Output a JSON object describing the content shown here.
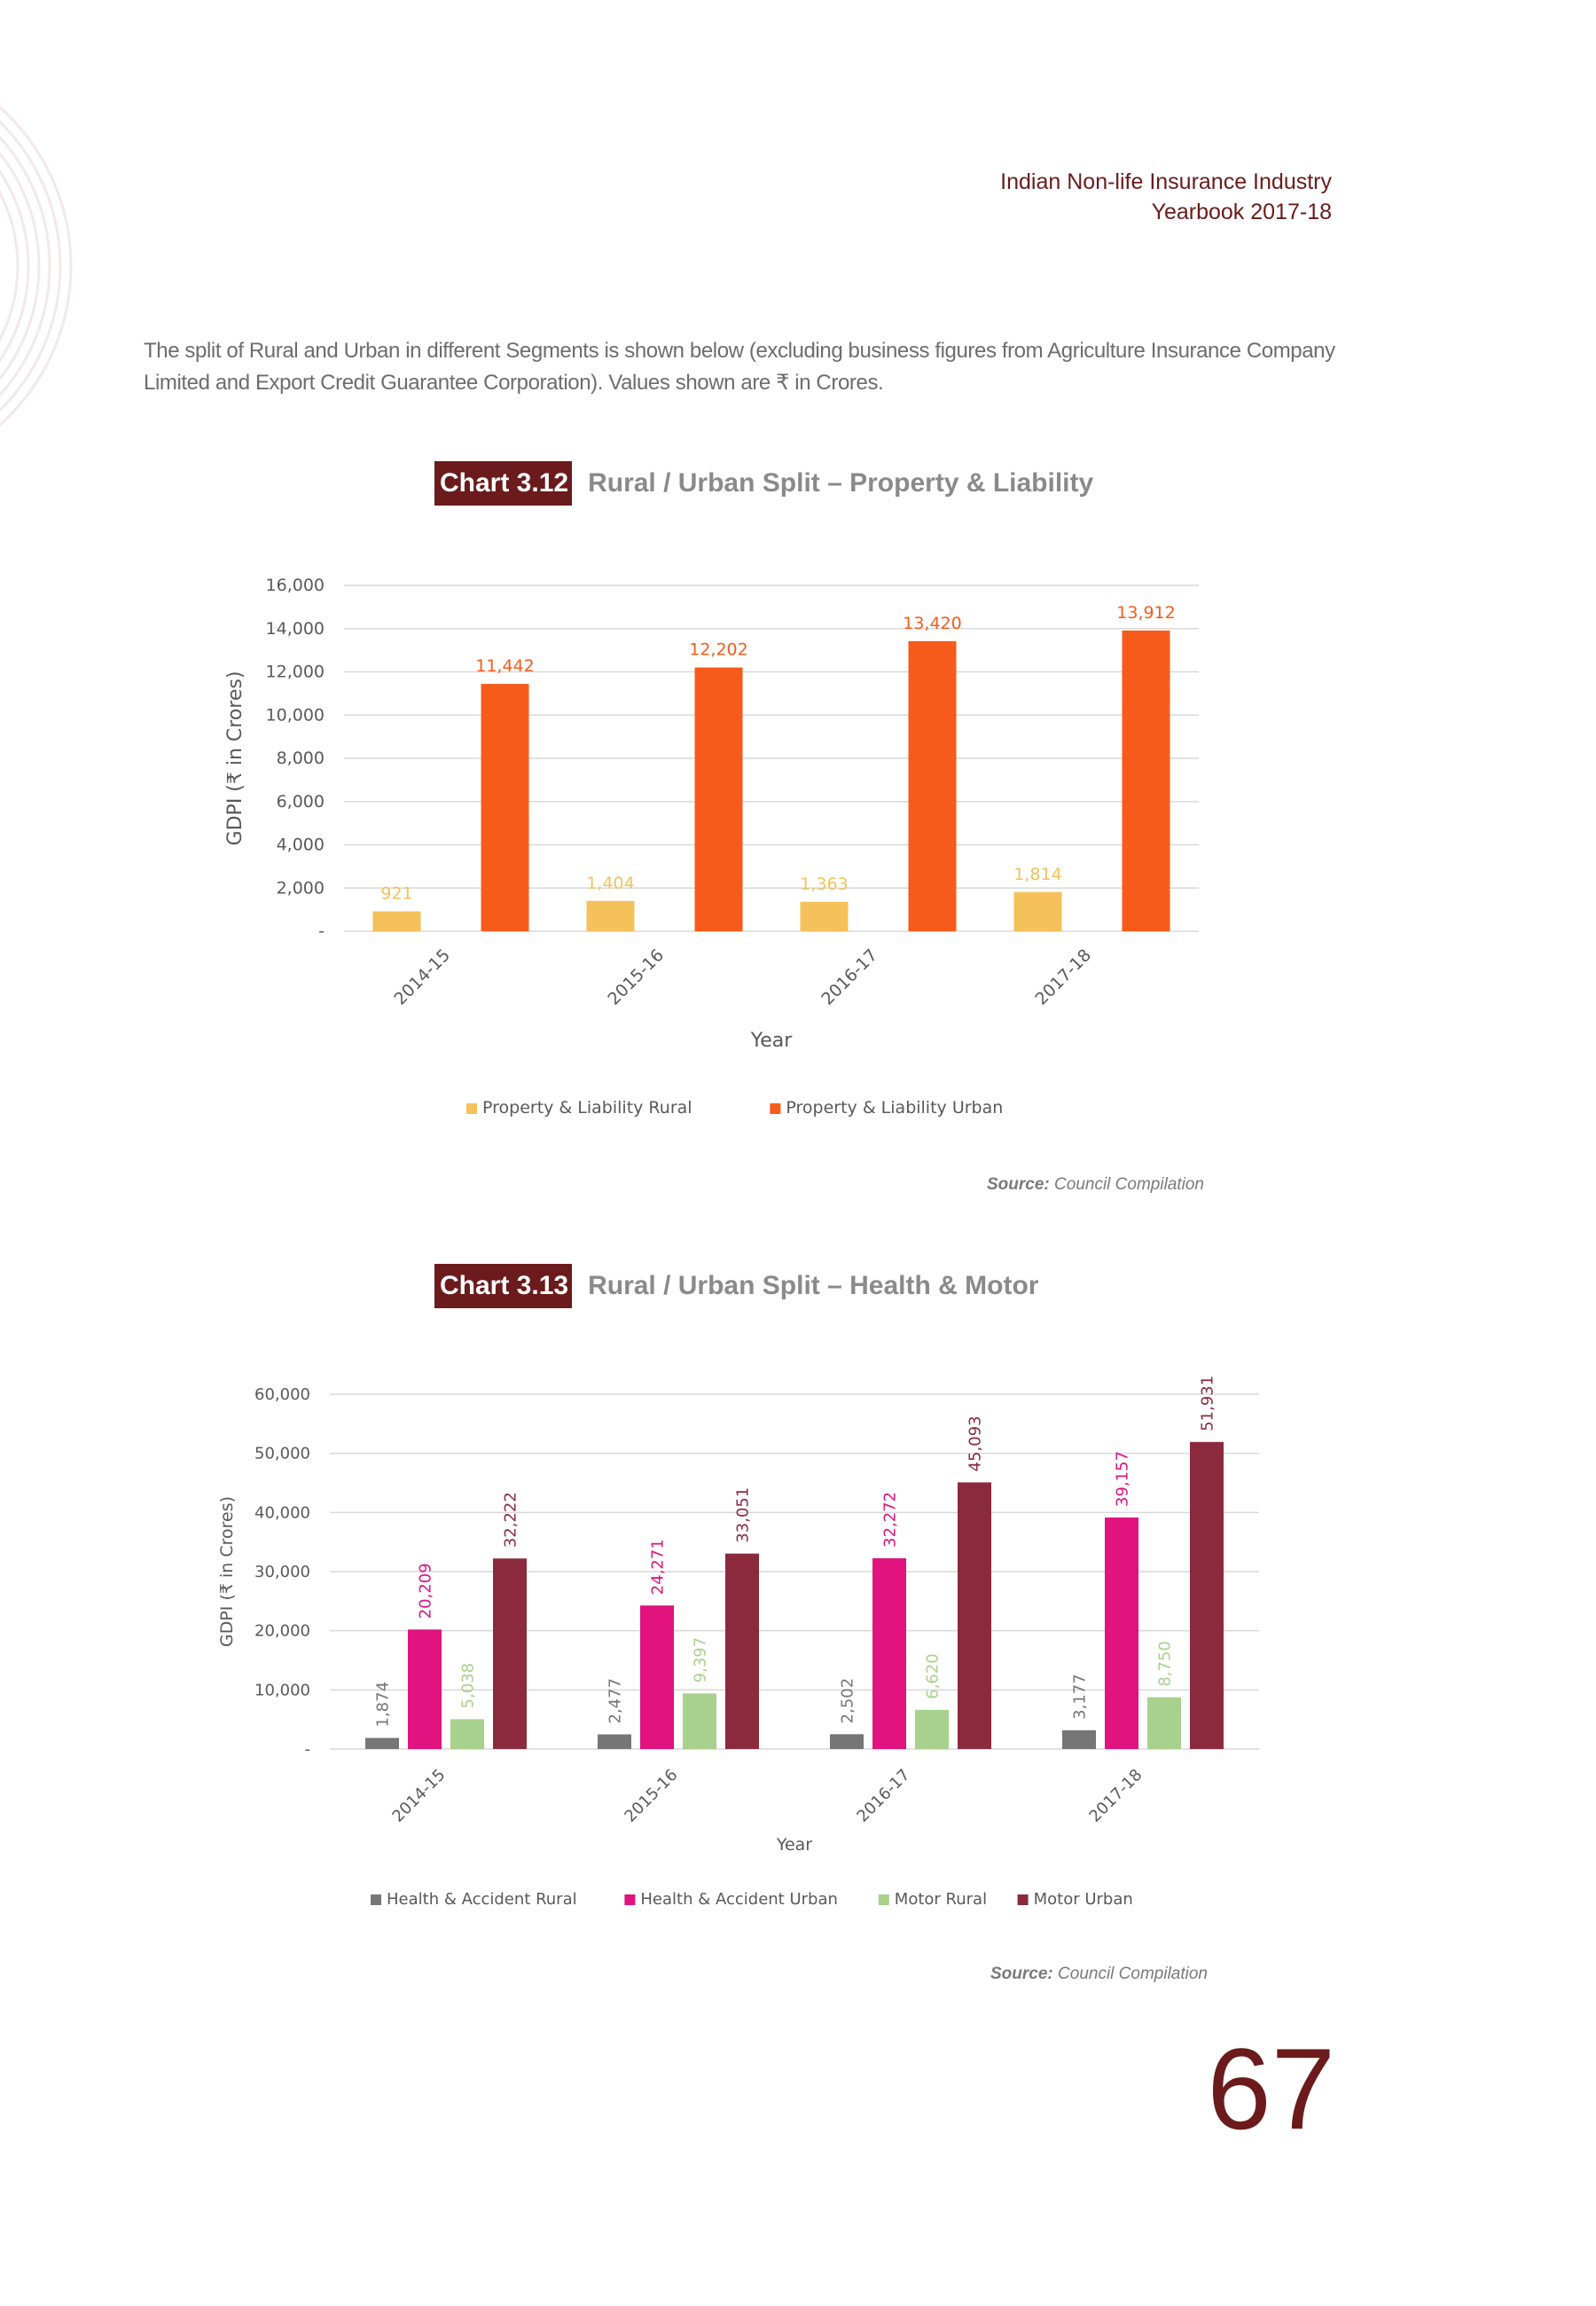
{
  "header": {
    "line1": "Indian Non-life Insurance Industry",
    "line2": "Yearbook 2017-18"
  },
  "intro": "The split of Rural and Urban in different Segments is shown below (excluding business figures from Agriculture Insurance Company Limited and Export Credit Guarantee Corporation). Values shown are ₹ in Crores.",
  "page_number": "67",
  "colors": {
    "brand": "#6b1b1b"
  },
  "charts": [
    {
      "badge": "Chart 3.12",
      "title": "Rural / Urban Split – Property & Liability",
      "source_label": "Source:",
      "source_text": "Council Compilation"
    },
    {
      "badge": "Chart 3.13",
      "title": "Rural / Urban Split – Health & Motor",
      "source_label": "Source:",
      "source_text": "Council Compilation"
    }
  ],
  "chart_data": [
    {
      "type": "bar",
      "title": "Rural / Urban Split – Property & Liability",
      "xlabel": "Year",
      "ylabel": "GDPI (₹ in Crores)",
      "ylim": [
        0,
        16000
      ],
      "yticks": [
        "-",
        "2,000",
        "4,000",
        "6,000",
        "8,000",
        "10,000",
        "12,000",
        "14,000",
        "16,000"
      ],
      "grid": true,
      "legend": "bottom",
      "categories": [
        "2014-15",
        "2015-16",
        "2016-17",
        "2017-18"
      ],
      "series": [
        {
          "name": "Property & Liability Rural",
          "color": "#f5c15b",
          "values": [
            921,
            1404,
            1363,
            1814
          ],
          "labels": [
            "921",
            "1,404",
            "1,363",
            "1,814"
          ]
        },
        {
          "name": "Property & Liability Urban",
          "color": "#f75b1c",
          "values": [
            11442,
            12202,
            13420,
            13912
          ],
          "labels": [
            "11,442",
            "12,202",
            "13,420",
            "13,912"
          ]
        }
      ]
    },
    {
      "type": "bar",
      "title": "Rural / Urban Split – Health & Motor",
      "xlabel": "Year",
      "ylabel": "GDPI (₹ in Crores)",
      "ylim": [
        0,
        60000
      ],
      "yticks": [
        "-",
        "10,000",
        "20,000",
        "30,000",
        "40,000",
        "50,000",
        "60,000"
      ],
      "grid": true,
      "legend": "bottom",
      "categories": [
        "2014-15",
        "2015-16",
        "2016-17",
        "2017-18"
      ],
      "series": [
        {
          "name": "Health & Accident Rural",
          "color": "#767676",
          "values": [
            1874,
            2477,
            2502,
            3177
          ],
          "labels": [
            "1,874",
            "2,477",
            "2,502",
            "3,177"
          ]
        },
        {
          "name": "Health & Accident Urban",
          "color": "#e0137f",
          "values": [
            20209,
            24271,
            32272,
            39157
          ],
          "labels": [
            "20,209",
            "24,271",
            "32,272",
            "39,157"
          ]
        },
        {
          "name": "Motor Rural",
          "color": "#a8d18d",
          "values": [
            5038,
            9397,
            6620,
            8750
          ],
          "labels": [
            "5,038",
            "9,397",
            "6,620",
            "8,750"
          ]
        },
        {
          "name": "Motor Urban",
          "color": "#8b2a3c",
          "values": [
            32222,
            33051,
            45093,
            51931
          ],
          "labels": [
            "32,222",
            "33,051",
            "45,093",
            "51,931"
          ]
        }
      ]
    }
  ]
}
